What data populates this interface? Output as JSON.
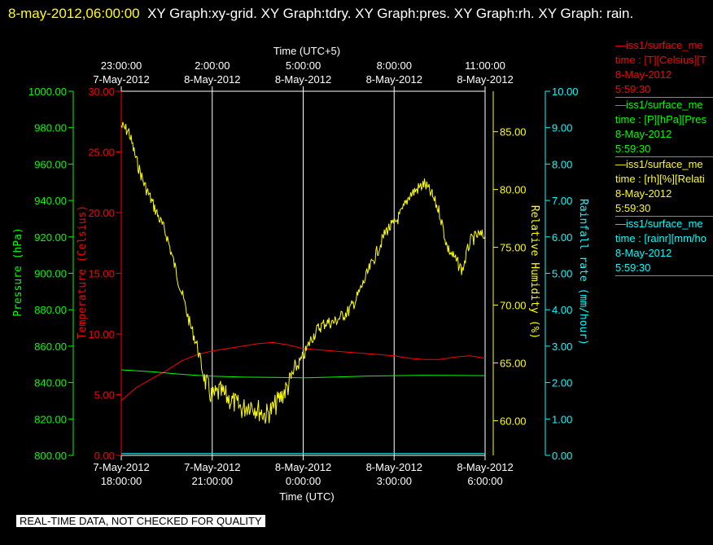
{
  "header": {
    "timestamp": "8-may-2012,06:00:00",
    "title_rest": "XY Graph:xy-grid.  XY Graph:tdry.  XY Graph:pres.  XY Graph:rh.  XY Graph: rain."
  },
  "colors": {
    "temperature": "#ff0000",
    "pressure": "#00ff00",
    "humidity": "#ffff00",
    "rain": "#00ffff",
    "grid": "#ffffff",
    "background": "#000000"
  },
  "legend": [
    {
      "line": "—iss1/surface_me",
      "field": "time : [T][Celsius][T",
      "date": "8-May-2012",
      "time": "5:59:30",
      "color": "#ff0000"
    },
    {
      "line": "—iss1/surface_me",
      "field": "time : [P][hPa][Pres",
      "date": "8-May-2012",
      "time": "5:59:30",
      "color": "#00ff00"
    },
    {
      "line": "—iss1/surface_me",
      "field": "time : [rh][%][Relati",
      "date": "8-May-2012",
      "time": "5:59:30",
      "color": "#ffff00"
    },
    {
      "line": "—iss1/surface_me",
      "field": "time : [rainr][mm/ho",
      "date": "8-May-2012",
      "time": "5:59:30",
      "color": "#00ffff"
    }
  ],
  "footer": {
    "quality_note": "REAL-TIME DATA, NOT CHECKED FOR QUALITY"
  },
  "chart_data": {
    "type": "line",
    "title": "",
    "xlabel_bottom": "Time (UTC)",
    "xlabel_top": "Time (UTC+5)",
    "x_range_hours_utc": [
      18,
      30
    ],
    "x_ticks_bottom": [
      {
        "date": "7-May-2012",
        "time": "18:00:00"
      },
      {
        "date": "7-May-2012",
        "time": "21:00:00"
      },
      {
        "date": "8-May-2012",
        "time": "0:00:00"
      },
      {
        "date": "8-May-2012",
        "time": "3:00:00"
      },
      {
        "date": "8-May-2012",
        "time": "6:00:00"
      }
    ],
    "x_ticks_top": [
      {
        "time": "23:00:00",
        "date": "7-May-2012"
      },
      {
        "time": "2:00:00",
        "date": "8-May-2012"
      },
      {
        "time": "5:00:00",
        "date": "8-May-2012"
      },
      {
        "time": "8:00:00",
        "date": "8-May-2012"
      },
      {
        "time": "11:00:00",
        "date": "8-May-2012"
      }
    ],
    "axes": {
      "pressure": {
        "label": "Pressure (hPa)",
        "range": [
          800,
          1000
        ],
        "ticks": [
          "1000.00",
          "980.00",
          "960.00",
          "940.00",
          "920.00",
          "900.00",
          "880.00",
          "860.00",
          "840.00",
          "820.00",
          "800.00"
        ]
      },
      "temperature": {
        "label": "Temperature (Celsius)",
        "range": [
          0,
          30
        ],
        "ticks": [
          "30.00",
          "25.00",
          "20.00",
          "15.00",
          "10.00",
          "5.00",
          "0.00"
        ]
      },
      "humidity": {
        "label": "Relative Humidity (%)",
        "range": [
          57,
          88.5
        ],
        "ticks": [
          "85.00",
          "80.00",
          "75.00",
          "70.00",
          "65.00",
          "60.00"
        ]
      },
      "rain": {
        "label": "Rainfall rate (mm/hour)",
        "range": [
          0,
          10
        ],
        "ticks": [
          "10.00",
          "9.00",
          "8.00",
          "7.00",
          "6.00",
          "5.00",
          "4.00",
          "3.00",
          "2.00",
          "1.00",
          "0.00"
        ]
      }
    },
    "grid": true,
    "series": [
      {
        "name": "T",
        "axis": "temperature",
        "x": [
          18.0,
          18.5,
          19.0,
          19.5,
          20.0,
          20.5,
          21.0,
          21.5,
          22.0,
          22.5,
          23.0,
          23.5,
          24.0,
          24.5,
          25.0,
          25.5,
          26.0,
          26.5,
          27.0,
          27.5,
          28.0,
          28.5,
          29.0,
          29.5,
          30.0
        ],
        "values": [
          4.5,
          5.6,
          6.3,
          7.0,
          7.8,
          8.3,
          8.6,
          8.8,
          9.0,
          9.2,
          9.3,
          9.1,
          8.8,
          8.7,
          8.6,
          8.5,
          8.4,
          8.3,
          8.2,
          8.0,
          7.9,
          7.9,
          8.1,
          8.2,
          8.0
        ]
      },
      {
        "name": "P",
        "axis": "pressure",
        "x": [
          18.0,
          19.0,
          20.0,
          21.0,
          22.0,
          23.0,
          24.0,
          25.0,
          26.0,
          27.0,
          28.0,
          29.0,
          30.0
        ],
        "values": [
          847.0,
          846.0,
          844.5,
          843.5,
          843.0,
          842.8,
          842.6,
          843.0,
          843.5,
          843.8,
          844.0,
          843.9,
          843.8
        ]
      },
      {
        "name": "rh",
        "axis": "humidity",
        "x": [
          18.0,
          18.25,
          18.5,
          18.75,
          19.0,
          19.25,
          19.5,
          19.75,
          20.0,
          20.25,
          20.5,
          20.75,
          21.0,
          21.25,
          21.5,
          21.75,
          22.0,
          22.25,
          22.5,
          22.75,
          23.0,
          23.25,
          23.5,
          23.75,
          24.0,
          24.25,
          24.5,
          24.75,
          25.0,
          25.25,
          25.5,
          25.75,
          26.0,
          26.25,
          26.5,
          26.75,
          27.0,
          27.25,
          27.5,
          27.75,
          28.0,
          28.25,
          28.5,
          28.75,
          29.0,
          29.25,
          29.5,
          29.75,
          30.0
        ],
        "values": [
          85.5,
          85.0,
          82.5,
          80.5,
          79.0,
          77.5,
          76.0,
          73.5,
          71.0,
          68.5,
          66.5,
          63.5,
          62.0,
          62.5,
          62.0,
          61.5,
          61.0,
          61.5,
          61.0,
          60.5,
          61.0,
          62.0,
          63.0,
          64.5,
          65.5,
          67.0,
          68.0,
          68.5,
          68.5,
          69.0,
          69.5,
          70.5,
          72.0,
          73.5,
          75.0,
          76.5,
          77.0,
          78.0,
          79.5,
          80.0,
          80.5,
          79.5,
          78.0,
          75.0,
          74.0,
          73.0,
          75.5,
          76.0,
          76.0
        ]
      },
      {
        "name": "rainr",
        "axis": "rain",
        "x": [
          18.0,
          30.0
        ],
        "values": [
          0.05,
          0.05
        ]
      }
    ]
  }
}
